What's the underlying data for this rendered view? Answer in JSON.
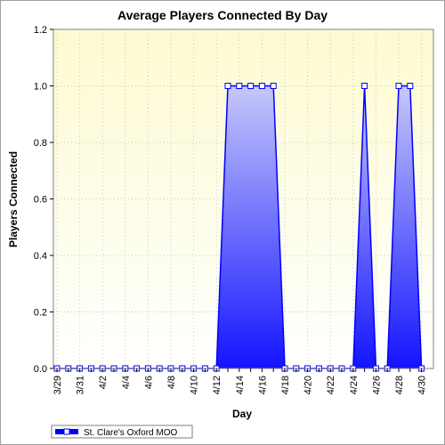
{
  "chart_data": {
    "type": "area",
    "title": "Average Players Connected By Day",
    "xlabel": "Day",
    "ylabel": "Players Connected",
    "ylim": [
      0,
      1.2
    ],
    "yticks": [
      "0.0",
      "0.2",
      "0.4",
      "0.6",
      "0.8",
      "1.0",
      "1.2"
    ],
    "grid": true,
    "legend_position": "bottom-left",
    "categories": [
      "3/29",
      "3/30",
      "3/31",
      "4/1",
      "4/2",
      "4/3",
      "4/4",
      "4/5",
      "4/6",
      "4/7",
      "4/8",
      "4/9",
      "4/10",
      "4/11",
      "4/12",
      "4/13",
      "4/14",
      "4/15",
      "4/16",
      "4/17",
      "4/18",
      "4/19",
      "4/20",
      "4/21",
      "4/22",
      "4/23",
      "4/24",
      "4/25",
      "4/26",
      "4/27",
      "4/28",
      "4/29",
      "4/30"
    ],
    "xtick_labels": [
      "3/29",
      "3/31",
      "4/2",
      "4/4",
      "4/6",
      "4/8",
      "4/10",
      "4/12",
      "4/14",
      "4/16",
      "4/18",
      "4/20",
      "4/22",
      "4/24",
      "4/26",
      "4/28",
      "4/30"
    ],
    "series": [
      {
        "name": "St. Clare's Oxford MOO",
        "color": "#0000ff",
        "values": [
          0,
          0,
          0,
          0,
          0,
          0,
          0,
          0,
          0,
          0,
          0,
          0,
          0,
          0,
          0,
          1,
          1,
          1,
          1,
          1,
          0,
          0,
          0,
          0,
          0,
          0,
          0,
          1,
          0,
          0,
          1,
          1,
          0
        ]
      }
    ],
    "colors": {
      "plot_background_top": "#fdfbd0",
      "plot_background_bottom": "#ffffff",
      "fill_light": "#c6c8fa",
      "fill_dark": "#1414ff",
      "line": "#0000ff"
    }
  }
}
